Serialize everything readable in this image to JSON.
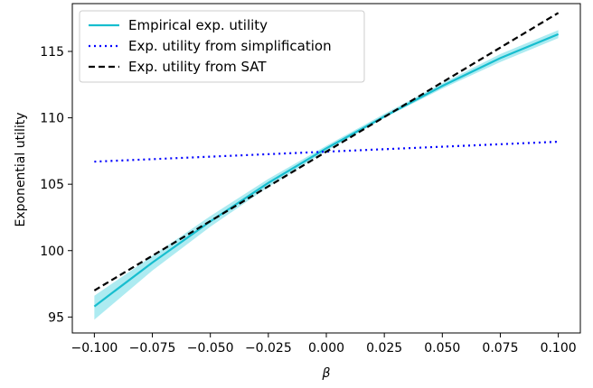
{
  "chart_data": {
    "type": "line",
    "xlabel": "β",
    "ylabel": "Exponential utility",
    "xlim": [
      -0.1095,
      0.1095
    ],
    "ylim": [
      93.8,
      118.6
    ],
    "x_ticks": [
      -0.1,
      -0.075,
      -0.05,
      -0.025,
      0.0,
      0.025,
      0.05,
      0.075,
      0.1
    ],
    "x_tick_labels": [
      "−0.100",
      "−0.075",
      "−0.050",
      "−0.025",
      "0.000",
      "0.025",
      "0.050",
      "0.075",
      "0.100"
    ],
    "y_ticks": [
      95,
      100,
      105,
      110,
      115
    ],
    "y_tick_labels": [
      "95",
      "100",
      "105",
      "110",
      "115"
    ],
    "grid": false,
    "legend_position": "upper-left",
    "series": [
      {
        "name": "Empirical exp. utility",
        "style": "solid",
        "color": "#17becf",
        "band_color": "#9fe8ef",
        "x": [
          -0.1,
          -0.075,
          -0.05,
          -0.025,
          0.0,
          0.025,
          0.05,
          0.075,
          0.1
        ],
        "y": [
          95.8,
          99.1,
          102.2,
          105.1,
          107.7,
          110.1,
          112.4,
          114.5,
          116.3
        ],
        "band_lower": [
          94.8,
          98.5,
          101.8,
          104.8,
          107.5,
          110.0,
          112.2,
          114.2,
          116.0
        ],
        "band_upper": [
          96.6,
          99.6,
          102.6,
          105.4,
          107.9,
          110.3,
          112.6,
          114.8,
          116.6
        ]
      },
      {
        "name": "Exp. utility from simplification",
        "style": "dotted",
        "color": "#0000ff",
        "x": [
          -0.1,
          0.1
        ],
        "y": [
          106.7,
          108.2
        ]
      },
      {
        "name": "Exp. utility from SAT",
        "style": "dashed",
        "color": "#000000",
        "x": [
          -0.1,
          0.1
        ],
        "y": [
          97.0,
          117.9
        ]
      }
    ]
  }
}
